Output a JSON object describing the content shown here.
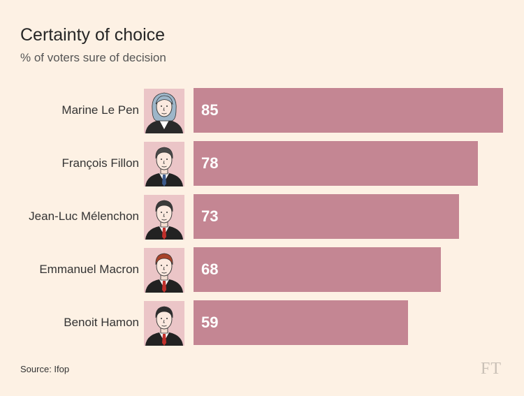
{
  "chart_data": {
    "type": "bar",
    "orientation": "horizontal",
    "title": "Certainty of choice",
    "subtitle": "% of voters sure of decision",
    "categories": [
      "Marine Le Pen",
      "François Fillon",
      "Jean-Luc Mélenchon",
      "Emmanuel Macron",
      "Benoit Hamon"
    ],
    "values": [
      85,
      78,
      73,
      68,
      59
    ],
    "xlim": [
      0,
      85
    ],
    "bar_color": "#c48693",
    "portrait_bg": "#ebc5c7",
    "source": "Source: Ifop",
    "publisher_logo": "FT"
  }
}
